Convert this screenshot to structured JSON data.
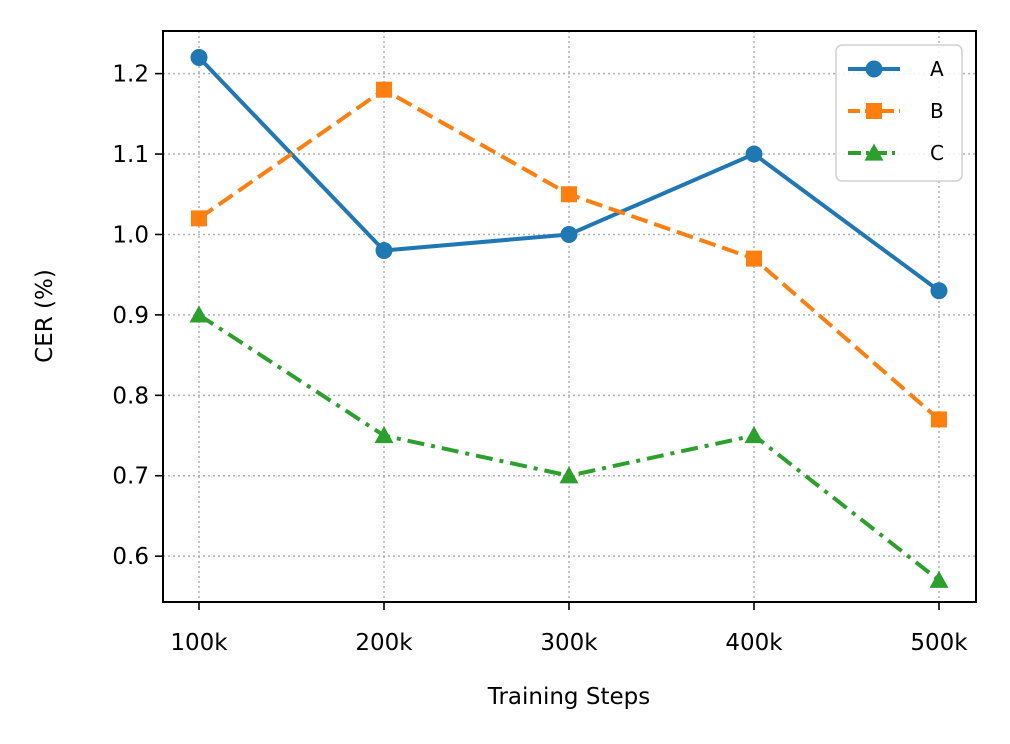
{
  "chart_data": {
    "type": "line",
    "title": "",
    "xlabel": "Training Steps",
    "ylabel": "CER (%)",
    "categories": [
      "100k",
      "200k",
      "300k",
      "400k",
      "500k"
    ],
    "yticks": [
      "0.6",
      "0.7",
      "0.8",
      "0.9",
      "1.0",
      "1.1",
      "1.2"
    ],
    "ylim": [
      0.543,
      1.253
    ],
    "grid": true,
    "legend_position": "top-right",
    "series": [
      {
        "name": "A",
        "values": [
          1.22,
          0.98,
          1.0,
          1.1,
          0.93
        ],
        "color": "#1f77b4",
        "marker": "circle",
        "linestyle": "solid"
      },
      {
        "name": "B",
        "values": [
          1.02,
          1.18,
          1.05,
          0.97,
          0.77
        ],
        "color": "#ff7f0e",
        "marker": "square",
        "linestyle": "dashed"
      },
      {
        "name": "C",
        "values": [
          0.9,
          0.75,
          0.7,
          0.75,
          0.57
        ],
        "color": "#2ca02c",
        "marker": "triangle",
        "linestyle": "dashdot"
      }
    ]
  }
}
